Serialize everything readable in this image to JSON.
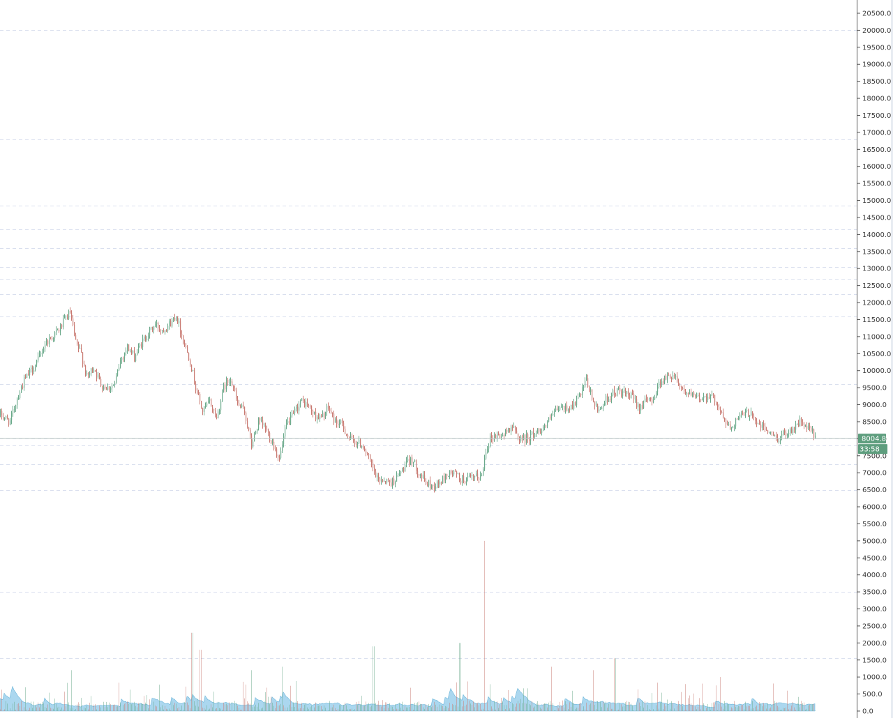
{
  "chart_data": {
    "type": "candlestick",
    "title": "",
    "xlabel": "",
    "ylabel": "",
    "ylim": [
      -100,
      20700
    ],
    "ticks": [
      "20500.0",
      "20000.0",
      "19500.0",
      "19000.0",
      "18500.0",
      "18000.0",
      "17500.0",
      "17000.0",
      "16500.0",
      "16000.0",
      "15500.0",
      "15000.0",
      "14500.0",
      "14000.0",
      "13500.0",
      "13000.0",
      "12500.0",
      "12000.0",
      "11500.0",
      "11000.0",
      "10500.0",
      "10000.0",
      "9500.0",
      "9000.0",
      "8500.0",
      "8000.0",
      "7500.0",
      "7000.0",
      "6500.0",
      "6000.0",
      "5500.0",
      "5000.0",
      "4500.0",
      "4000.0",
      "3500.0",
      "3000.0",
      "2500.0",
      "2000.0",
      "1500.0",
      "1000.0",
      "500.0",
      "0.0"
    ],
    "grid_levels": [
      20000,
      16800,
      14850,
      14150,
      13600,
      13050,
      12700,
      12250,
      11600,
      9600,
      8000,
      7800,
      7250,
      6500,
      3500,
      1550
    ],
    "current_price": "8004.8",
    "current_price_value": 8004.8,
    "countdown": "33:58",
    "price_path": [
      [
        0,
        8700
      ],
      [
        14,
        8500
      ],
      [
        24,
        9200
      ],
      [
        34,
        9700
      ],
      [
        44,
        10000
      ],
      [
        54,
        10300
      ],
      [
        64,
        10800
      ],
      [
        74,
        11000
      ],
      [
        84,
        11200
      ],
      [
        94,
        11550
      ],
      [
        100,
        11700
      ],
      [
        108,
        10800
      ],
      [
        116,
        10500
      ],
      [
        124,
        9800
      ],
      [
        134,
        10100
      ],
      [
        144,
        9600
      ],
      [
        154,
        9500
      ],
      [
        164,
        9600
      ],
      [
        172,
        10300
      ],
      [
        182,
        10700
      ],
      [
        192,
        10400
      ],
      [
        202,
        10800
      ],
      [
        212,
        11100
      ],
      [
        222,
        11350
      ],
      [
        232,
        11200
      ],
      [
        244,
        11400
      ],
      [
        252,
        11650
      ],
      [
        262,
        10900
      ],
      [
        272,
        10300
      ],
      [
        280,
        9500
      ],
      [
        290,
        8800
      ],
      [
        300,
        9100
      ],
      [
        310,
        8600
      ],
      [
        320,
        9500
      ],
      [
        330,
        9800
      ],
      [
        340,
        9000
      ],
      [
        350,
        8800
      ],
      [
        360,
        7800
      ],
      [
        370,
        8500
      ],
      [
        380,
        8300
      ],
      [
        390,
        7900
      ],
      [
        400,
        7400
      ],
      [
        410,
        8400
      ],
      [
        420,
        8700
      ],
      [
        430,
        9100
      ],
      [
        440,
        9000
      ],
      [
        450,
        8700
      ],
      [
        460,
        8600
      ],
      [
        470,
        8900
      ],
      [
        480,
        8500
      ],
      [
        490,
        8400
      ],
      [
        500,
        8000
      ],
      [
        510,
        7900
      ],
      [
        520,
        7800
      ],
      [
        530,
        7300
      ],
      [
        540,
        6800
      ],
      [
        550,
        6800
      ],
      [
        560,
        6700
      ],
      [
        570,
        6900
      ],
      [
        580,
        7200
      ],
      [
        590,
        7400
      ],
      [
        600,
        7000
      ],
      [
        610,
        6700
      ],
      [
        620,
        6600
      ],
      [
        630,
        6700
      ],
      [
        640,
        6950
      ],
      [
        650,
        7000
      ],
      [
        660,
        6800
      ],
      [
        670,
        6800
      ],
      [
        680,
        6850
      ],
      [
        690,
        6900
      ],
      [
        696,
        7700
      ],
      [
        702,
        8000
      ],
      [
        712,
        8100
      ],
      [
        722,
        8100
      ],
      [
        732,
        8400
      ],
      [
        742,
        8050
      ],
      [
        752,
        8000
      ],
      [
        762,
        8100
      ],
      [
        772,
        8250
      ],
      [
        782,
        8400
      ],
      [
        792,
        8700
      ],
      [
        802,
        8900
      ],
      [
        812,
        8900
      ],
      [
        822,
        9000
      ],
      [
        832,
        9300
      ],
      [
        840,
        9700
      ],
      [
        848,
        9200
      ],
      [
        856,
        8800
      ],
      [
        866,
        9100
      ],
      [
        876,
        9300
      ],
      [
        886,
        9400
      ],
      [
        896,
        9300
      ],
      [
        906,
        9200
      ],
      [
        916,
        8950
      ],
      [
        926,
        9100
      ],
      [
        936,
        9200
      ],
      [
        946,
        9700
      ],
      [
        956,
        9800
      ],
      [
        966,
        9900
      ],
      [
        976,
        9500
      ],
      [
        986,
        9300
      ],
      [
        996,
        9200
      ],
      [
        1006,
        9200
      ],
      [
        1016,
        9300
      ],
      [
        1026,
        9100
      ],
      [
        1036,
        8600
      ],
      [
        1046,
        8300
      ],
      [
        1056,
        8600
      ],
      [
        1066,
        8700
      ],
      [
        1076,
        8800
      ],
      [
        1086,
        8400
      ],
      [
        1096,
        8300
      ],
      [
        1106,
        8100
      ],
      [
        1116,
        8000
      ],
      [
        1126,
        8200
      ],
      [
        1136,
        8300
      ],
      [
        1146,
        8500
      ],
      [
        1156,
        8300
      ],
      [
        1164,
        8200
      ],
      [
        1168,
        8005
      ]
    ],
    "volume_spikes": [
      [
        275,
        2300
      ],
      [
        287,
        1800
      ],
      [
        535,
        1900
      ],
      [
        659,
        2000
      ],
      [
        694,
        5000
      ],
      [
        881,
        1550
      ],
      [
        102,
        1200
      ],
      [
        404,
        1300
      ],
      [
        360,
        1200
      ],
      [
        790,
        1300
      ],
      [
        850,
        1200
      ],
      [
        1032,
        1000
      ]
    ],
    "colors": {
      "up": "#6aa98a",
      "down": "#c97a72",
      "volume_fill": "#8fc9ea",
      "volume_bar": "#6bb5d9",
      "grid": "#d9dfee",
      "axis": "#555555",
      "price_line": "#b9c4c0",
      "badge": "#5e9e7e"
    }
  }
}
